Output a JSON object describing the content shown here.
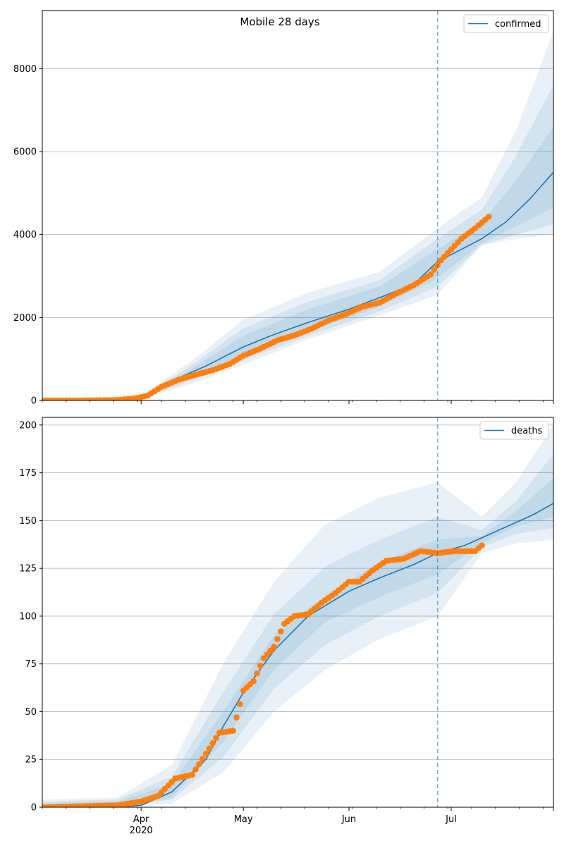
{
  "figure": {
    "title": "Mobile 28 days",
    "colors": {
      "model": "#1f77b4",
      "observed": "#ff7f0e",
      "band": "#1f77b4",
      "grid": "#b0b0b0"
    },
    "forecast_start_date": "2020-06-27"
  },
  "chart_data": [
    {
      "type": "line",
      "panel": "top",
      "title": "Mobile 28 days",
      "xlabel": "",
      "ylabel": "",
      "xlim": [
        "2020-03-03",
        "2020-07-31"
      ],
      "ylim": [
        0,
        9400
      ],
      "yticks": [
        0,
        2000,
        4000,
        6000,
        8000
      ],
      "ytick_labels": [
        "0",
        "2000",
        "4000",
        "6000",
        "8000"
      ],
      "grid": true,
      "legend": {
        "placement": "top-right",
        "entries": [
          "confirmed"
        ]
      },
      "vline_date": "2020-06-27",
      "series": [
        {
          "name": "confirmed",
          "kind": "model",
          "x": [
            "2020-03-20",
            "2020-03-25",
            "2020-03-31",
            "2020-04-05",
            "2020-04-10",
            "2020-04-15",
            "2020-04-20",
            "2020-04-25",
            "2020-05-01",
            "2020-05-10",
            "2020-05-20",
            "2020-06-01",
            "2020-06-10",
            "2020-06-20",
            "2020-06-27",
            "2020-07-03",
            "2020-07-10",
            "2020-07-17",
            "2020-07-24",
            "2020-07-31"
          ],
          "values": [
            0,
            10,
            60,
            250,
            470,
            650,
            830,
            1040,
            1290,
            1590,
            1880,
            2200,
            2480,
            2800,
            3350,
            3600,
            3900,
            4300,
            4850,
            5500
          ]
        },
        {
          "name": "",
          "kind": "observed",
          "x": [
            "2020-03-03",
            "2020-03-15",
            "2020-03-25",
            "2020-03-31",
            "2020-04-03",
            "2020-04-07",
            "2020-04-12",
            "2020-04-17",
            "2020-04-22",
            "2020-04-27",
            "2020-05-01",
            "2020-05-06",
            "2020-05-11",
            "2020-05-16",
            "2020-05-21",
            "2020-05-26",
            "2020-05-31",
            "2020-06-05",
            "2020-06-10",
            "2020-06-15",
            "2020-06-20",
            "2020-06-25",
            "2020-06-28",
            "2020-07-01",
            "2020-07-04",
            "2020-07-08",
            "2020-07-12"
          ],
          "values": [
            0,
            0,
            10,
            60,
            120,
            330,
            500,
            620,
            730,
            880,
            1080,
            1250,
            1450,
            1570,
            1730,
            1930,
            2080,
            2260,
            2360,
            2580,
            2780,
            3040,
            3380,
            3640,
            3900,
            4150,
            4430
          ]
        }
      ],
      "bands": [
        {
          "x": [
            "2020-03-20",
            "2020-04-01",
            "2020-04-15",
            "2020-05-01",
            "2020-05-20",
            "2020-06-10",
            "2020-06-27",
            "2020-07-10",
            "2020-07-20",
            "2020-07-31"
          ],
          "lower": [
            0,
            40,
            380,
            860,
            1480,
            2050,
            2550,
            3750,
            3900,
            4000
          ],
          "upper": [
            20,
            120,
            900,
            1950,
            2600,
            3100,
            4150,
            4900,
            6500,
            8900
          ]
        },
        {
          "x": [
            "2020-03-20",
            "2020-04-01",
            "2020-04-15",
            "2020-05-01",
            "2020-05-20",
            "2020-06-10",
            "2020-06-27",
            "2020-07-10",
            "2020-07-20",
            "2020-07-31"
          ],
          "lower": [
            0,
            50,
            450,
            960,
            1560,
            2150,
            2750,
            3750,
            4000,
            4250
          ],
          "upper": [
            15,
            100,
            800,
            1740,
            2380,
            2900,
            3900,
            4600,
            5900,
            7600
          ]
        },
        {
          "x": [
            "2020-03-20",
            "2020-04-01",
            "2020-04-15",
            "2020-05-01",
            "2020-05-20",
            "2020-06-10",
            "2020-06-27",
            "2020-07-10",
            "2020-07-20",
            "2020-07-31"
          ],
          "lower": [
            0,
            55,
            520,
            1060,
            1660,
            2260,
            2950,
            3800,
            4200,
            4650
          ],
          "upper": [
            10,
            85,
            720,
            1560,
            2200,
            2750,
            3650,
            4300,
            5300,
            6600
          ]
        }
      ]
    },
    {
      "type": "line",
      "panel": "bottom",
      "title": "",
      "xlabel": "",
      "ylabel": "",
      "xlim": [
        "2020-03-03",
        "2020-07-31"
      ],
      "ylim": [
        0,
        204
      ],
      "yticks": [
        0,
        25,
        50,
        75,
        100,
        125,
        150,
        175,
        200
      ],
      "ytick_labels": [
        "0",
        "25",
        "50",
        "75",
        "100",
        "125",
        "150",
        "175",
        "200"
      ],
      "xtick_labels": [
        "Apr\n2020",
        "May",
        "Jun",
        "Jul"
      ],
      "xtick_dates": [
        "2020-04-01",
        "2020-05-01",
        "2020-06-01",
        "2020-07-01"
      ],
      "grid": true,
      "legend": {
        "placement": "top-right",
        "entries": [
          "deaths"
        ]
      },
      "vline_date": "2020-06-27",
      "series": [
        {
          "name": "deaths",
          "kind": "model",
          "x": [
            "2020-03-03",
            "2020-03-25",
            "2020-04-01",
            "2020-04-10",
            "2020-04-20",
            "2020-04-25",
            "2020-05-01",
            "2020-05-10",
            "2020-05-20",
            "2020-06-01",
            "2020-06-10",
            "2020-06-20",
            "2020-06-27",
            "2020-07-05",
            "2020-07-15",
            "2020-07-25",
            "2020-07-31"
          ],
          "values": [
            0,
            0,
            1,
            8,
            25,
            42,
            60,
            82,
            100,
            113,
            120,
            127,
            133,
            137,
            145,
            153,
            159
          ]
        },
        {
          "name": "",
          "kind": "observed",
          "x": [
            "2020-03-03",
            "2020-03-25",
            "2020-04-01",
            "2020-04-06",
            "2020-04-11",
            "2020-04-16",
            "2020-04-20",
            "2020-04-24",
            "2020-04-28",
            "2020-05-01",
            "2020-05-04",
            "2020-05-07",
            "2020-05-10",
            "2020-05-13",
            "2020-05-16",
            "2020-05-20",
            "2020-05-24",
            "2020-05-28",
            "2020-06-01",
            "2020-06-04",
            "2020-06-08",
            "2020-06-12",
            "2020-06-17",
            "2020-06-22",
            "2020-06-27",
            "2020-07-02",
            "2020-07-08",
            "2020-07-10"
          ],
          "values": [
            0,
            1,
            3,
            6,
            15,
            17,
            28,
            39,
            40,
            61,
            66,
            78,
            84,
            96,
            100,
            101,
            107,
            112,
            118,
            118,
            124,
            129,
            130,
            134,
            133,
            134,
            134,
            137
          ]
        }
      ],
      "bands": [
        {
          "x": [
            "2020-03-03",
            "2020-03-25",
            "2020-04-10",
            "2020-04-25",
            "2020-05-10",
            "2020-05-25",
            "2020-06-10",
            "2020-06-27",
            "2020-07-10",
            "2020-07-20",
            "2020-07-31"
          ],
          "lower": [
            0,
            0,
            2,
            18,
            50,
            72,
            88,
            100,
            133,
            138,
            140
          ],
          "upper": [
            4,
            5,
            22,
            75,
            118,
            148,
            162,
            170,
            152,
            170,
            200
          ]
        },
        {
          "x": [
            "2020-03-03",
            "2020-03-25",
            "2020-04-10",
            "2020-04-25",
            "2020-05-10",
            "2020-05-25",
            "2020-06-10",
            "2020-06-27",
            "2020-07-10",
            "2020-07-20",
            "2020-07-31"
          ],
          "lower": [
            0,
            0,
            4,
            26,
            62,
            85,
            100,
            112,
            136,
            143,
            146
          ],
          "upper": [
            3,
            4,
            16,
            60,
            101,
            126,
            140,
            152,
            145,
            160,
            185
          ]
        },
        {
          "x": [
            "2020-03-03",
            "2020-03-25",
            "2020-04-10",
            "2020-04-25",
            "2020-05-10",
            "2020-05-25",
            "2020-06-10",
            "2020-06-27",
            "2020-07-10",
            "2020-07-20",
            "2020-07-31"
          ],
          "lower": [
            0,
            0,
            5,
            34,
            72,
            97,
            110,
            122,
            138,
            147,
            152
          ],
          "upper": [
            2,
            3,
            12,
            50,
            90,
            111,
            128,
            140,
            142,
            155,
            172
          ]
        }
      ]
    }
  ]
}
